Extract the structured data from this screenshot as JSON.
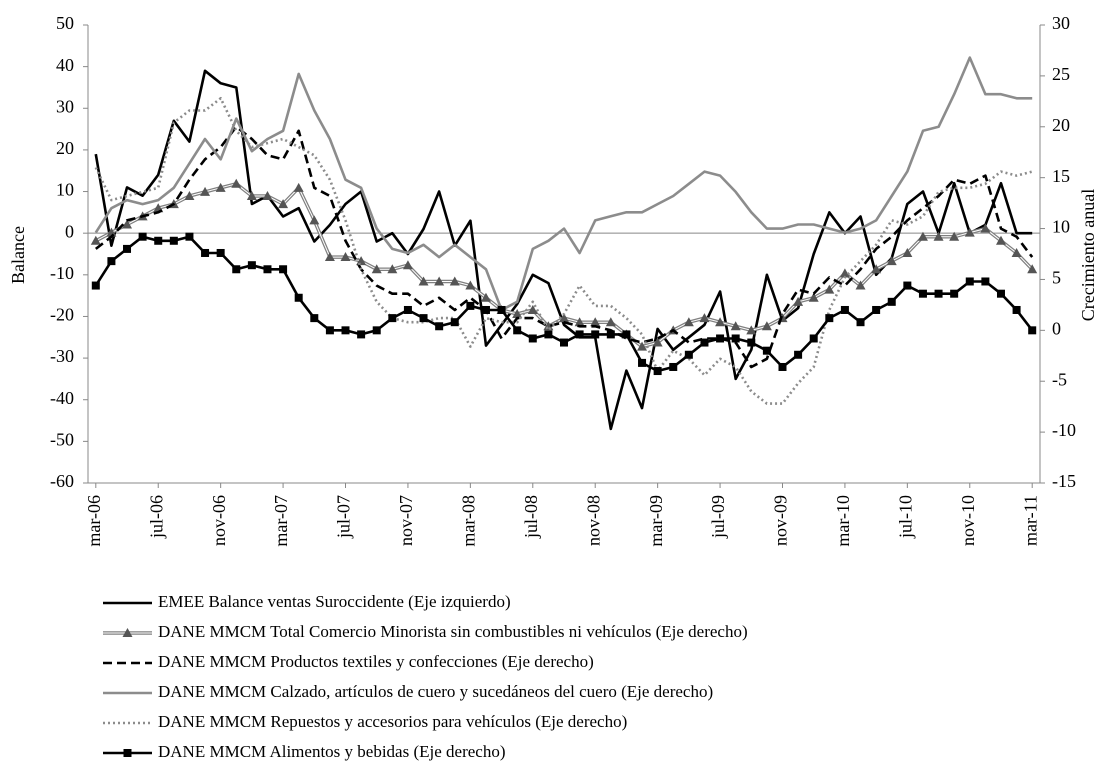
{
  "chart_data": {
    "type": "line",
    "y_label": "Balance",
    "y2_label": "Crecimiento anual",
    "categories": [
      "mar-06",
      null,
      null,
      null,
      "jul-06",
      null,
      null,
      null,
      "nov-06",
      null,
      null,
      null,
      "mar-07",
      null,
      null,
      null,
      "jul-07",
      null,
      null,
      null,
      "nov-07",
      null,
      null,
      null,
      "mar-08",
      null,
      null,
      null,
      "jul-08",
      null,
      null,
      null,
      "nov-08",
      null,
      null,
      null,
      "mar-09",
      null,
      null,
      null,
      "jul-09",
      null,
      null,
      null,
      "nov-09",
      null,
      null,
      null,
      "mar-10",
      null,
      null,
      null,
      "jul-10",
      null,
      null,
      null,
      "nov-10",
      null,
      null,
      null,
      "mar-11"
    ],
    "ylim": [
      -60,
      50
    ],
    "yticks": [
      -60,
      -50,
      -40,
      -30,
      -20,
      -10,
      0,
      10,
      20,
      30,
      40,
      50
    ],
    "y2lim": [
      -15,
      30
    ],
    "y2ticks": [
      -15,
      -10,
      -5,
      0,
      5,
      10,
      15,
      20,
      25,
      30
    ],
    "series": [
      {
        "name": "EMEE Balance ventas Suroccidente (Eje izquierdo)",
        "color": "#000000",
        "dash": "solid",
        "values": [
          19,
          -3,
          11,
          9,
          14,
          27,
          22,
          39,
          36,
          35,
          7,
          9,
          4,
          6,
          -2,
          2,
          7,
          10,
          -2,
          0,
          -5,
          1,
          10,
          -3,
          3,
          -27,
          -22,
          -17,
          -10,
          -12,
          -22,
          -25,
          -25,
          -47,
          -33,
          -42,
          -23,
          -28,
          -25,
          -22,
          -14,
          -35,
          -28,
          -10,
          -21,
          -18,
          -5,
          5,
          0,
          4,
          -10,
          -6,
          7,
          10,
          0,
          12,
          0,
          2,
          12,
          0,
          0
        ]
      },
      {
        "name": "DANE MMCM Total Comercio Minorista sin combustibles ni vehículos (Eje derecho)",
        "color": "#808080",
        "dash": "solid",
        "marker": "triangle",
        "axis": "y2",
        "values": [
          8.8,
          9.6,
          10.4,
          11.2,
          12,
          12.4,
          13.2,
          13.6,
          14,
          14.4,
          13.2,
          13.2,
          12.4,
          14,
          10.8,
          7.2,
          7.2,
          6.8,
          6,
          6,
          6.4,
          4.8,
          4.8,
          4.8,
          4.4,
          3.2,
          2,
          1.6,
          2,
          0.4,
          1.2,
          0.8,
          0.8,
          0.8,
          -0.4,
          -1.6,
          -1.2,
          0,
          0.8,
          1.2,
          0.8,
          0.4,
          0,
          0.4,
          1.2,
          2.8,
          3.2,
          4,
          5.6,
          4.4,
          6,
          6.8,
          7.6,
          9.2,
          9.2,
          9.2,
          9.6,
          10,
          8.8,
          7.6,
          6
        ]
      },
      {
        "name": "DANE MMCM Productos textiles y confecciones (Eje derecho)",
        "color": "#000000",
        "dash": "dashed",
        "axis": "y2",
        "values": [
          8,
          9.2,
          10.8,
          11.2,
          11.6,
          12.4,
          14.8,
          16.8,
          18,
          20,
          18.8,
          17.2,
          16.8,
          19.6,
          14,
          13.2,
          8.8,
          6,
          4.4,
          3.6,
          3.6,
          2.4,
          3.2,
          2,
          3.2,
          2,
          -0.8,
          1.2,
          1.2,
          0.4,
          0.8,
          0.4,
          0.4,
          0,
          -0.8,
          -1.2,
          -0.8,
          0,
          -1.2,
          -0.8,
          -0.8,
          -1.2,
          -3.6,
          -2.8,
          1.6,
          4,
          3.6,
          5.2,
          4.4,
          6,
          8,
          9.2,
          10.8,
          12,
          13.2,
          14.8,
          14.4,
          15.2,
          10,
          9.2,
          7.2
        ]
      },
      {
        "name": "DANE MMCM Calzado, artículos de cuero y sucedáneos del cuero (Eje derecho)",
        "color": "#8c8c8c",
        "dash": "solid",
        "axis": "y2",
        "values": [
          9.6,
          12,
          12.8,
          12.4,
          12.8,
          14,
          16.4,
          18.8,
          16.8,
          20.8,
          17.6,
          18.8,
          19.6,
          25.2,
          21.6,
          18.8,
          14.8,
          14,
          10,
          8,
          7.6,
          8.4,
          7.2,
          8.4,
          7.2,
          6,
          2,
          2.8,
          8,
          8.8,
          10,
          7.6,
          10.8,
          11.2,
          11.6,
          11.6,
          12.4,
          13.2,
          14.4,
          15.6,
          15.2,
          13.6,
          11.6,
          10,
          10,
          10.4,
          10.4,
          10,
          9.6,
          10,
          10.8,
          13.2,
          15.6,
          19.6,
          20,
          23.2,
          26.8,
          23.2,
          23.2,
          22.8,
          22.8
        ]
      },
      {
        "name": "DANE MMCM Repuestos y accesorios para vehículos (Eje derecho)",
        "color": "#8c8c8c",
        "dash": "dotted",
        "axis": "y2",
        "values": [
          16,
          12.8,
          13.2,
          13.6,
          14,
          20.4,
          21.6,
          21.6,
          22.8,
          19.6,
          18,
          18.4,
          18.8,
          18,
          17.2,
          14.8,
          10.8,
          6,
          2.8,
          1.2,
          0.8,
          0.8,
          1.2,
          1.2,
          -1.6,
          1.2,
          0.8,
          0.8,
          2.8,
          0,
          1.6,
          4.4,
          2.4,
          2.4,
          1.2,
          -0.4,
          -4,
          -2,
          -2.8,
          -4.4,
          -2.8,
          -3.6,
          -6,
          -7.2,
          -7.2,
          -5.2,
          -3.6,
          2,
          5.2,
          6.8,
          8.4,
          10.8,
          10.4,
          11.2,
          13.6,
          14,
          14,
          14.4,
          15.6,
          15.2,
          15.6
        ]
      },
      {
        "name": "DANE MMCM Alimentos y bebidas (Eje derecho)",
        "color": "#000000",
        "dash": "solid",
        "marker": "square",
        "axis": "y2",
        "values": [
          4.4,
          6.8,
          8,
          9.2,
          8.8,
          8.8,
          9.2,
          7.6,
          7.6,
          6,
          6.4,
          6,
          6,
          3.2,
          1.2,
          0,
          0,
          -0.4,
          0,
          1.2,
          2,
          1.2,
          0.4,
          0.8,
          2.4,
          2,
          2,
          0,
          -0.8,
          -0.4,
          -1.2,
          -0.4,
          -0.4,
          -0.4,
          -0.4,
          -3.2,
          -4,
          -3.6,
          -2.4,
          -1.2,
          -0.8,
          -0.8,
          -1.2,
          -2,
          -3.6,
          -2.4,
          -0.8,
          1.2,
          2,
          0.8,
          2,
          2.8,
          4.4,
          3.6,
          3.6,
          3.6,
          4.8,
          4.8,
          3.6,
          2,
          0
        ]
      }
    ]
  }
}
